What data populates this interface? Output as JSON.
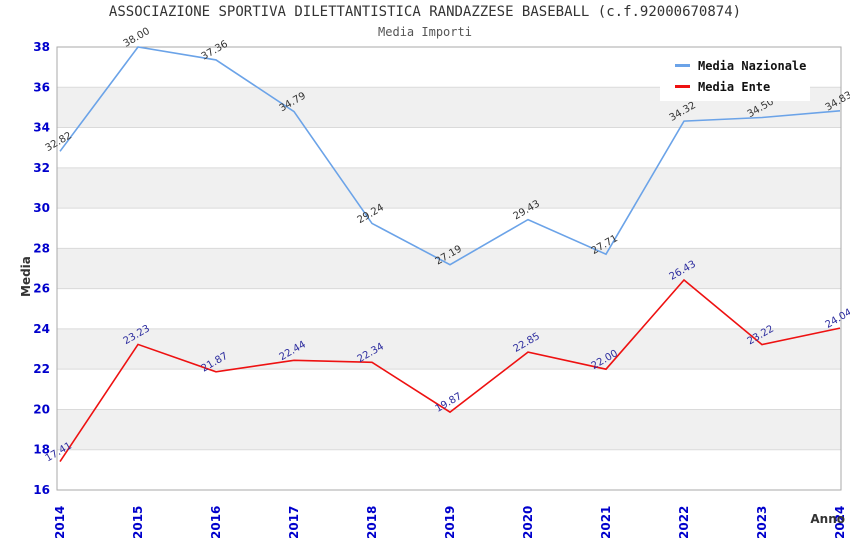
{
  "chart_data": {
    "type": "line",
    "title": "ASSOCIAZIONE SPORTIVA DILETTANTISTICA RANDAZZESE BASEBALL (c.f.92000670874)",
    "subtitle": "Media Importi",
    "xlabel": "Anno",
    "ylabel": "Media",
    "categories": [
      "2014",
      "2015",
      "2016",
      "2017",
      "2018",
      "2019",
      "2020",
      "2021",
      "2022",
      "2023",
      "2024"
    ],
    "series": [
      {
        "name": "Media Nazionale",
        "color": "#6BA3E8",
        "label_color": "#333333",
        "values": [
          32.82,
          38.0,
          37.36,
          34.79,
          29.24,
          27.19,
          29.43,
          27.71,
          34.32,
          34.5,
          34.83
        ],
        "point_labels": [
          "32.82",
          "38.00",
          "37.36",
          "34.79",
          "29.24",
          "27.19",
          "29.43",
          "27.71",
          "34.32",
          "34.50",
          "34.83"
        ]
      },
      {
        "name": "Media Ente",
        "color": "#EE1111",
        "label_color": "#2B2B9E",
        "values": [
          17.41,
          23.23,
          21.87,
          22.44,
          22.34,
          19.87,
          22.85,
          22.0,
          26.43,
          23.22,
          24.04
        ],
        "point_labels": [
          "17.41",
          "23.23",
          "21.87",
          "22.44",
          "22.34",
          "19.87",
          "22.85",
          "22.00",
          "26.43",
          "23.22",
          "24.04"
        ]
      }
    ],
    "ylim": [
      16,
      38
    ],
    "y_tick_step": 2,
    "y_tick_labels": [
      "16",
      "18",
      "20",
      "22",
      "24",
      "26",
      "28",
      "30",
      "32",
      "34",
      "36",
      "38"
    ],
    "grid": "horizontal-lines-with-alternating-bands",
    "legend_position": "top-right-inside",
    "colors": {
      "tick_label": "#0000CC",
      "band_fill": "#F0F0F0",
      "gridline": "#DADADA",
      "plot_border": "#AAAAAA",
      "axis_title": "#333333"
    }
  }
}
